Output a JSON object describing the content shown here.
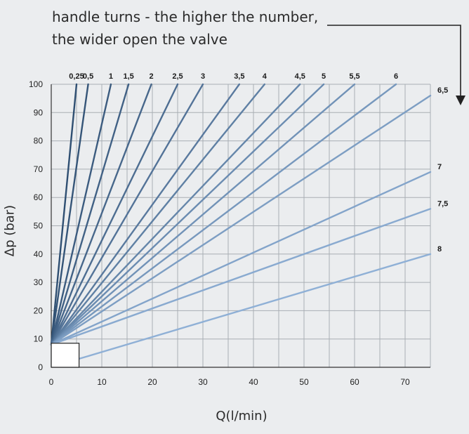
{
  "annotation": {
    "line1": "handle turns - the higher the number,",
    "line2": "the wider open the valve"
  },
  "colors": {
    "background": "#ebedef",
    "grid": "#a9aeb4",
    "axis": "#333333",
    "arrow": "#222222",
    "series_dark": "#2f4f72",
    "series_light": "#8fb0d6"
  },
  "chart_data": {
    "type": "line",
    "xlabel": "Q(l/min)",
    "ylabel": "Δp (bar)",
    "xlim": [
      0,
      75
    ],
    "ylim": [
      0,
      100
    ],
    "x_ticks": [
      "0",
      "10",
      "20",
      "30",
      "40",
      "50",
      "60",
      "70"
    ],
    "y_ticks": [
      "0",
      "10",
      "20",
      "30",
      "40",
      "50",
      "60",
      "70",
      "80",
      "90",
      "100"
    ],
    "x_tick_values": [
      0,
      10,
      20,
      30,
      40,
      50,
      60,
      70
    ],
    "y_tick_values": [
      0,
      10,
      20,
      30,
      40,
      50,
      60,
      70,
      80,
      90,
      100
    ],
    "grid": true,
    "grid_minor_x_step": 5,
    "series": [
      {
        "name": "0,25",
        "points": [
          [
            0,
            8
          ],
          [
            5,
            100
          ]
        ]
      },
      {
        "name": "0,5",
        "points": [
          [
            0,
            8
          ],
          [
            7.3,
            100
          ]
        ]
      },
      {
        "name": "1",
        "points": [
          [
            0,
            8
          ],
          [
            11.8,
            100
          ]
        ]
      },
      {
        "name": "1,5",
        "points": [
          [
            0,
            8
          ],
          [
            15.3,
            100
          ]
        ]
      },
      {
        "name": "2",
        "points": [
          [
            0,
            8
          ],
          [
            19.8,
            100
          ]
        ]
      },
      {
        "name": "2,5",
        "points": [
          [
            0,
            8
          ],
          [
            25,
            100
          ]
        ]
      },
      {
        "name": "3",
        "points": [
          [
            0,
            8
          ],
          [
            30,
            100
          ]
        ]
      },
      {
        "name": "3,5",
        "points": [
          [
            0,
            8
          ],
          [
            37.2,
            100
          ]
        ]
      },
      {
        "name": "4",
        "points": [
          [
            0,
            8
          ],
          [
            42.2,
            100
          ]
        ]
      },
      {
        "name": "4,5",
        "points": [
          [
            0,
            8
          ],
          [
            49.2,
            100
          ]
        ]
      },
      {
        "name": "5",
        "points": [
          [
            0,
            8
          ],
          [
            53.9,
            100
          ]
        ]
      },
      {
        "name": "5,5",
        "points": [
          [
            0,
            8
          ],
          [
            60,
            100
          ]
        ]
      },
      {
        "name": "6",
        "points": [
          [
            0,
            8
          ],
          [
            68.2,
            100
          ]
        ]
      },
      {
        "name": "6,5",
        "points": [
          [
            0,
            8
          ],
          [
            75,
            96
          ]
        ]
      },
      {
        "name": "7",
        "points": [
          [
            0,
            8
          ],
          [
            75,
            69
          ]
        ]
      },
      {
        "name": "7,5",
        "points": [
          [
            0,
            8
          ],
          [
            75,
            56
          ]
        ]
      },
      {
        "name": "8",
        "points": [
          [
            5.5,
            3
          ],
          [
            75,
            40
          ]
        ]
      }
    ],
    "annotations": [
      "handle turns - the higher the number,",
      "the wider open the valve"
    ],
    "callout_box": {
      "x_range": [
        0,
        5.5
      ],
      "y_range": [
        0,
        8.5
      ]
    }
  }
}
